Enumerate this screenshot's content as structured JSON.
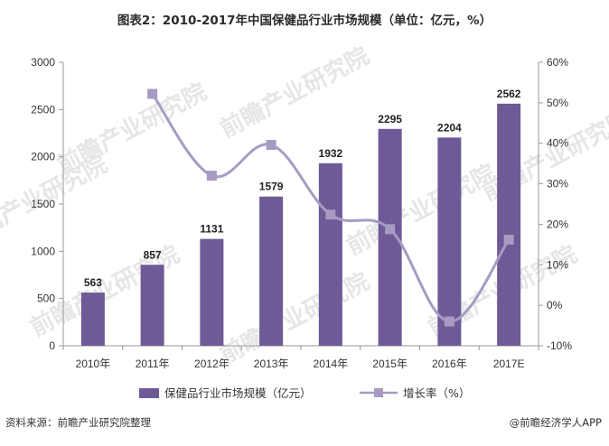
{
  "chart_data": {
    "type": "bar+line",
    "title": "图表2：2010-2017年中国保健品行业市场规模（单位：亿元，%）",
    "categories": [
      "2010年",
      "2011年",
      "2012年",
      "2013年",
      "2014年",
      "2015年",
      "2016年",
      "2017E"
    ],
    "series": [
      {
        "name": "保健品行业市场规模（亿元）",
        "type": "bar",
        "axis": "left",
        "values": [
          563,
          857,
          1131,
          1579,
          1932,
          2295,
          2204,
          2562
        ],
        "color": "#6d5a96"
      },
      {
        "name": "增长率（%）",
        "type": "line",
        "axis": "right",
        "values": [
          null,
          52.2,
          32.0,
          39.6,
          22.4,
          18.8,
          -4.0,
          16.2
        ],
        "color": "#a79bc3"
      }
    ],
    "left_axis": {
      "min": 0,
      "max": 3000,
      "ticks": [
        0,
        500,
        1000,
        1500,
        2000,
        2500,
        3000
      ]
    },
    "right_axis": {
      "min": -10,
      "max": 60,
      "ticks": [
        "-10%",
        "0%",
        "10%",
        "20%",
        "30%",
        "40%",
        "50%",
        "60%"
      ]
    },
    "legend_position": "bottom",
    "grid": false
  },
  "footer": {
    "source": "资料来源：前瞻产业研究院整理",
    "brand": "@前瞻经济学人APP"
  },
  "watermark": "前瞻产业研究院",
  "colors": {
    "bar": "#6d5a96",
    "line": "#a79bc3",
    "axis": "#999999"
  }
}
